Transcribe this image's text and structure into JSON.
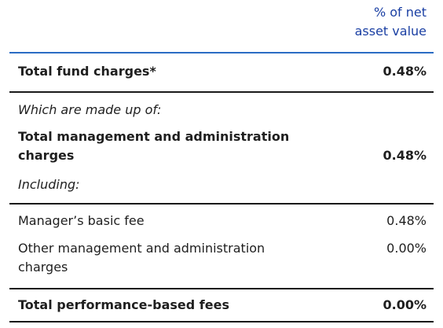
{
  "header": {
    "column_title_line1": "% of net",
    "column_title_line2": "asset value"
  },
  "rows": {
    "total_fund_charges": {
      "label": "Total fund charges*",
      "value": "0.48%"
    },
    "made_up_of": {
      "label": "Which are made up of:"
    },
    "total_mgmt_admin": {
      "label_line1": "Total management and administration",
      "label_line2": "charges",
      "value": "0.48%"
    },
    "including": {
      "label": "Including:"
    },
    "managers_basic_fee": {
      "label": "Manager’s basic fee",
      "value": "0.48%"
    },
    "other_mgmt_admin": {
      "label_line1": "Other management and administration",
      "label_line2": "charges",
      "value": "0.00%"
    },
    "total_performance_fees": {
      "label": "Total performance-based fees",
      "value": "0.00%"
    }
  }
}
